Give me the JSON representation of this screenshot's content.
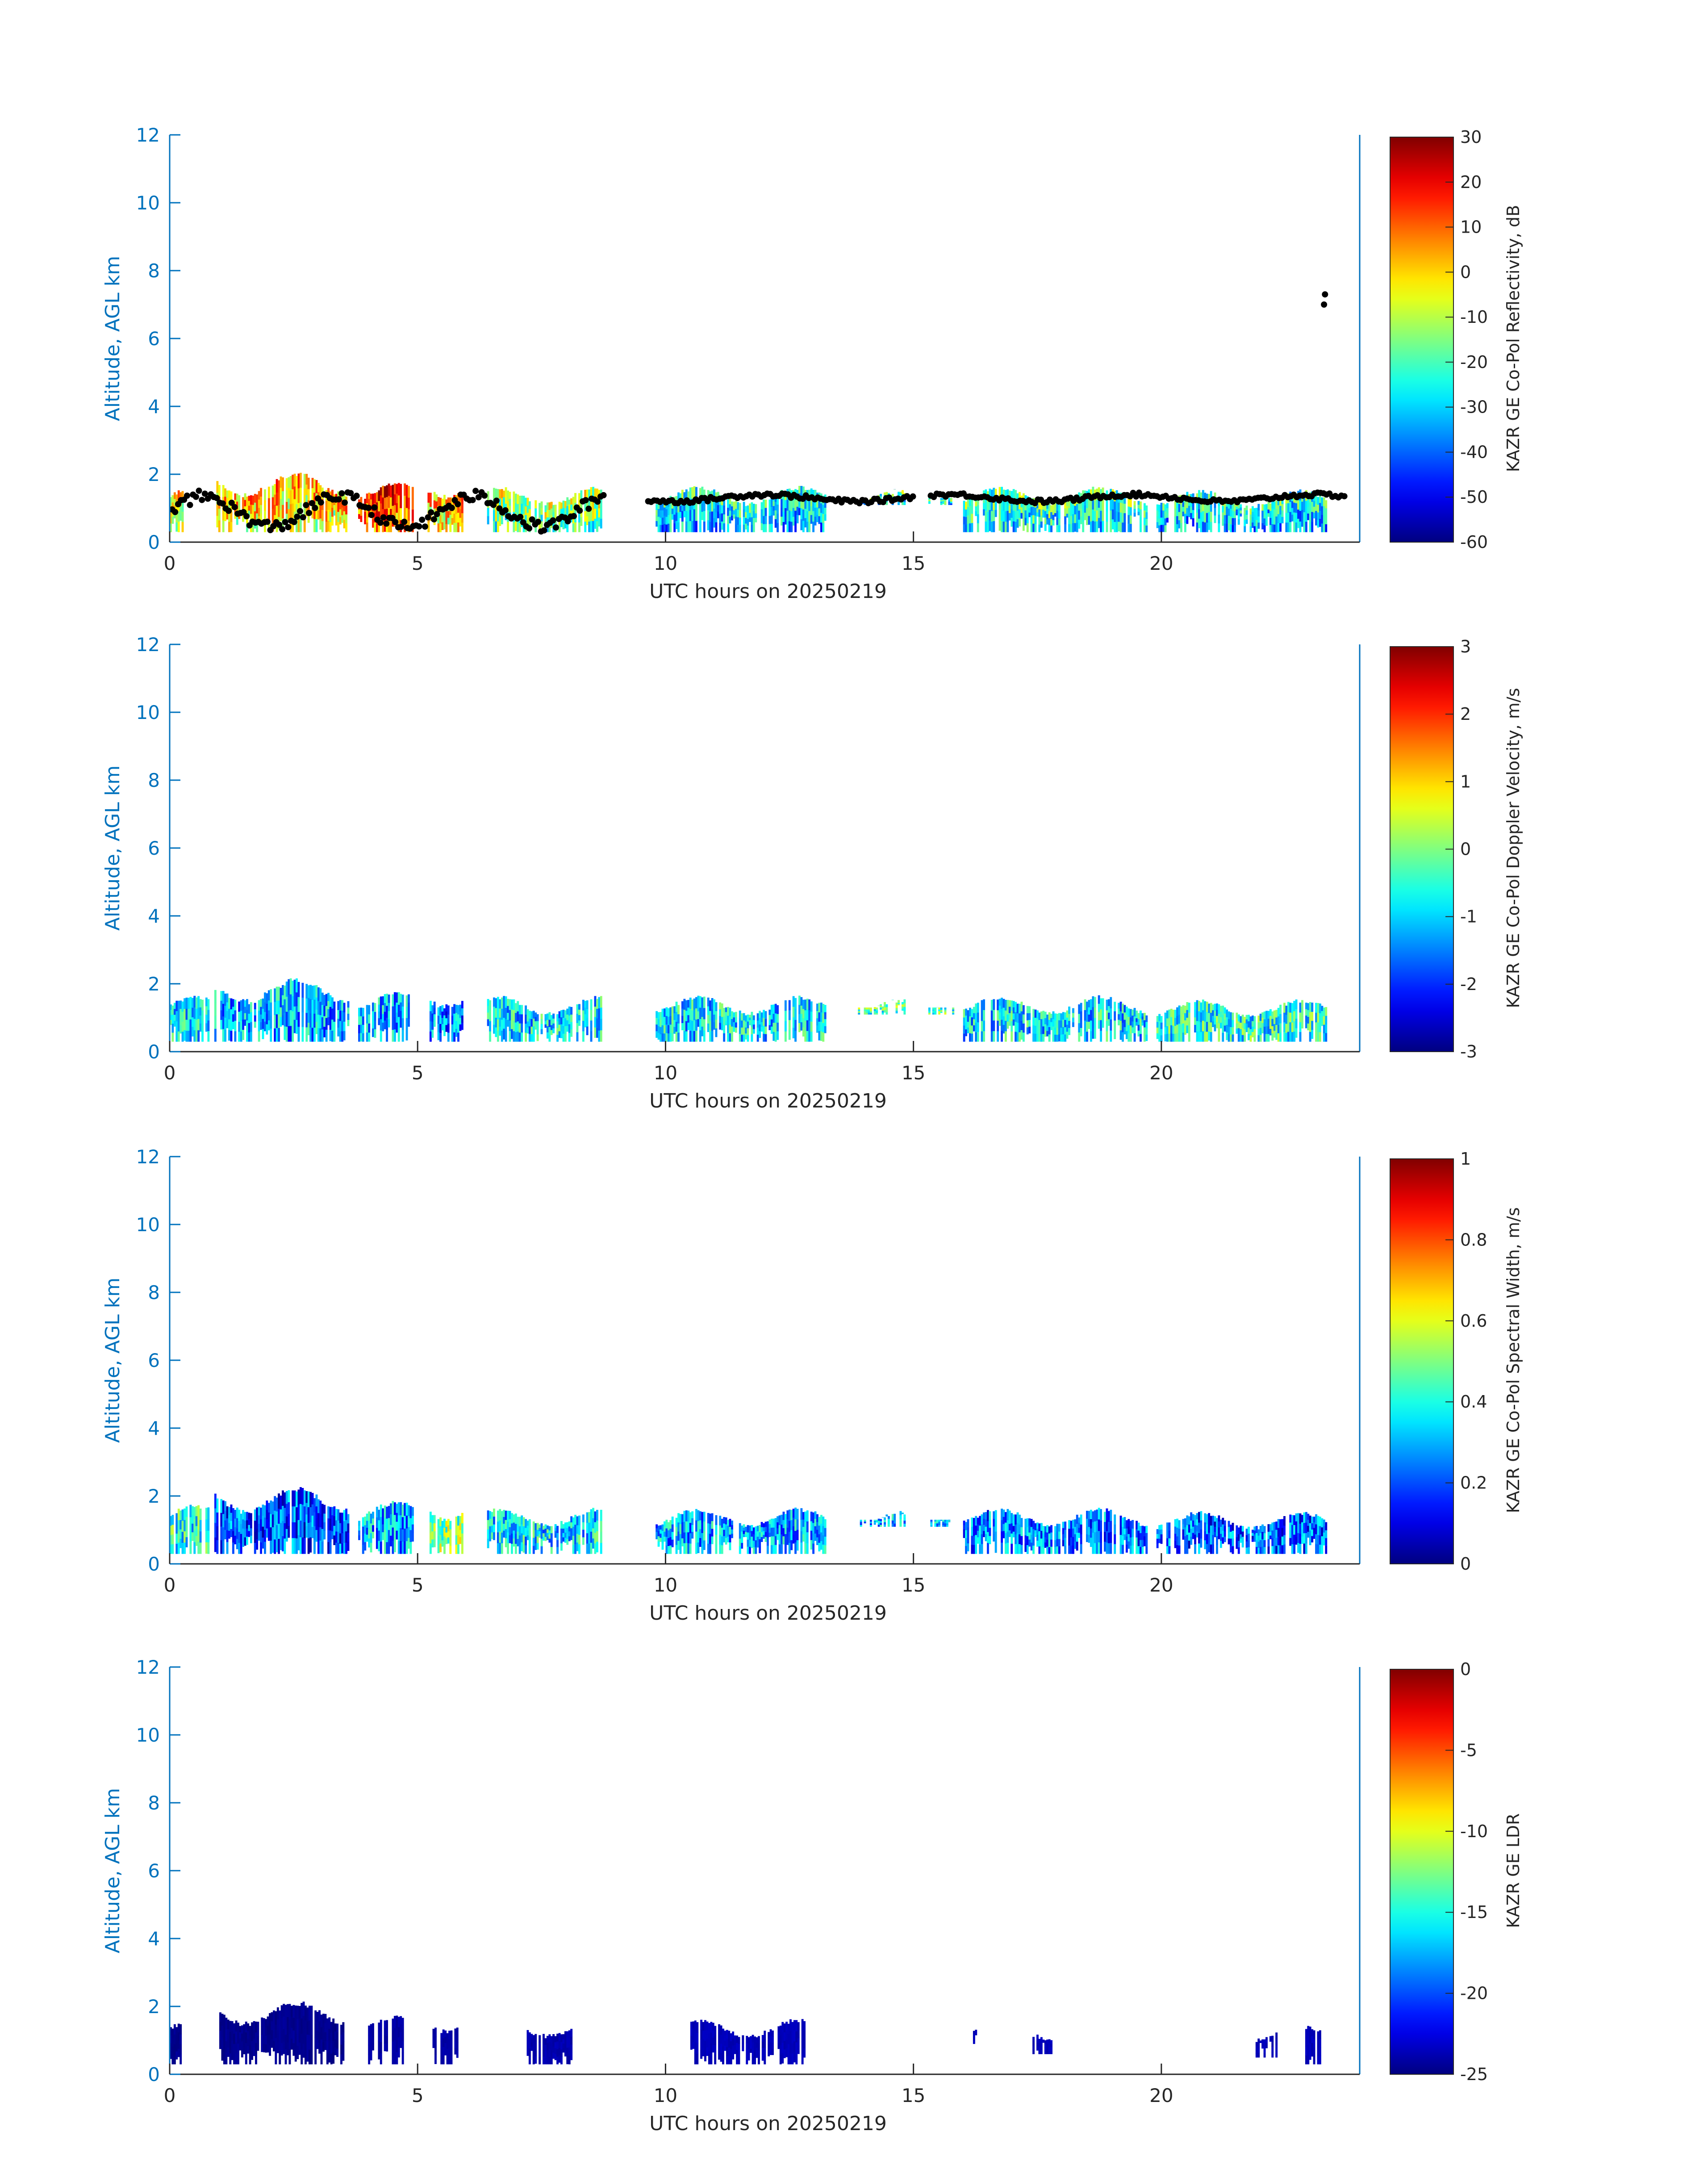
{
  "chart_data": [
    {
      "type": "heatmap",
      "xlabel": "UTC hours on 20250219",
      "ylabel": "Altitude, AGL km",
      "xlim": [
        0,
        24
      ],
      "ylim": [
        0,
        12
      ],
      "xticks": [
        0,
        5,
        10,
        15,
        20
      ],
      "yticks": [
        0,
        2,
        4,
        6,
        8,
        10,
        12
      ],
      "colorbar": {
        "label": "KAZR GE Co-Pol Reflectivity, dB",
        "range": [
          -60,
          30
        ],
        "ticks": [
          -60,
          -50,
          -40,
          -30,
          -20,
          -10,
          0,
          10,
          20,
          30
        ]
      },
      "colormap": "jet",
      "overlay": "black dots (cloud base)",
      "cloud_segments": [
        [
          0,
          0.3,
          0.3,
          1.6,
          0.55
        ],
        [
          0.9,
          3.6,
          0.3,
          2.0,
          0.6
        ],
        [
          3.8,
          4.9,
          0.3,
          1.7,
          0.75
        ],
        [
          5.2,
          5.9,
          0.3,
          1.9,
          0.6
        ],
        [
          6.4,
          8.7,
          0.3,
          1.6,
          0.45
        ],
        [
          9.8,
          13.2,
          0.3,
          1.6,
          0.3
        ],
        [
          13.8,
          14.8,
          1.1,
          1.5,
          0.35
        ],
        [
          15.3,
          15.8,
          1.1,
          1.5,
          0.35
        ],
        [
          16.0,
          19.7,
          0.3,
          1.6,
          0.35
        ],
        [
          19.9,
          23.3,
          0.3,
          1.5,
          0.3
        ]
      ]
    },
    {
      "type": "heatmap",
      "xlabel": "UTC hours on 20250219",
      "ylabel": "Altitude, AGL km",
      "xlim": [
        0,
        24
      ],
      "ylim": [
        0,
        12
      ],
      "xticks": [
        0,
        5,
        10,
        15,
        20
      ],
      "yticks": [
        0,
        2,
        4,
        6,
        8,
        10,
        12
      ],
      "colorbar": {
        "label": "KAZR GE Co-Pol Doppler Velocity, m/s",
        "range": [
          -3,
          3
        ],
        "ticks": [
          -3,
          -2,
          -1,
          0,
          1,
          2,
          3
        ]
      },
      "colormap": "jet",
      "cloud_segments": [
        [
          0,
          0.8,
          0.3,
          1.6,
          0.35
        ],
        [
          0.9,
          3.6,
          0.3,
          2.1,
          0.3
        ],
        [
          3.8,
          4.9,
          0.3,
          1.7,
          0.3
        ],
        [
          5.2,
          5.9,
          0.3,
          1.9,
          0.25
        ],
        [
          6.4,
          8.7,
          0.3,
          1.6,
          0.35
        ],
        [
          9.8,
          13.2,
          0.3,
          1.6,
          0.35
        ],
        [
          13.8,
          14.8,
          1.1,
          1.5,
          0.45
        ],
        [
          15.3,
          15.8,
          1.1,
          1.5,
          0.45
        ],
        [
          16.0,
          19.7,
          0.3,
          1.6,
          0.35
        ],
        [
          19.9,
          23.3,
          0.3,
          1.5,
          0.4
        ]
      ]
    },
    {
      "type": "heatmap",
      "xlabel": "UTC hours on 20250219",
      "ylabel": "Altitude, AGL km",
      "xlim": [
        0,
        24
      ],
      "ylim": [
        0,
        12
      ],
      "xticks": [
        0,
        5,
        10,
        15,
        20
      ],
      "yticks": [
        0,
        2,
        4,
        6,
        8,
        10,
        12
      ],
      "colorbar": {
        "label": "KAZR GE Co-Pol Spectral Width, m/s",
        "range": [
          0,
          1
        ],
        "ticks": [
          0,
          0.2,
          0.4,
          0.6,
          0.8,
          1
        ]
      },
      "colormap": "jet",
      "cloud_segments": [
        [
          0,
          0.8,
          0.3,
          1.7,
          0.4
        ],
        [
          0.9,
          3.6,
          0.3,
          2.2,
          0.2
        ],
        [
          3.8,
          4.9,
          0.3,
          1.8,
          0.3
        ],
        [
          5.2,
          5.9,
          0.3,
          1.9,
          0.5
        ],
        [
          6.4,
          8.7,
          0.3,
          1.6,
          0.35
        ],
        [
          9.8,
          13.2,
          0.3,
          1.6,
          0.3
        ],
        [
          13.8,
          14.8,
          1.1,
          1.5,
          0.3
        ],
        [
          15.3,
          15.8,
          1.1,
          1.5,
          0.3
        ],
        [
          16.0,
          19.7,
          0.3,
          1.6,
          0.25
        ],
        [
          19.9,
          23.3,
          0.3,
          1.5,
          0.22
        ]
      ]
    },
    {
      "type": "heatmap",
      "xlabel": "UTC hours on 20250219",
      "ylabel": "Altitude, AGL km",
      "xlim": [
        0,
        24
      ],
      "ylim": [
        0,
        12
      ],
      "xticks": [
        0,
        5,
        10,
        15,
        20
      ],
      "yticks": [
        0,
        2,
        4,
        6,
        8,
        10,
        12
      ],
      "colorbar": {
        "label": "KAZR GE LDR",
        "range": [
          -25,
          0
        ],
        "ticks": [
          -25,
          -20,
          -15,
          -10,
          -5,
          0
        ]
      },
      "colormap": "jet",
      "cloud_segments": [
        [
          0,
          0.25,
          0.3,
          1.6,
          0.0
        ],
        [
          1.0,
          3.5,
          0.3,
          2.1,
          0.0
        ],
        [
          4.0,
          4.7,
          0.3,
          1.7,
          0.02
        ],
        [
          5.3,
          5.8,
          0.3,
          1.8,
          0.02
        ],
        [
          7.2,
          8.1,
          0.3,
          1.6,
          0.03
        ],
        [
          10.5,
          12.8,
          0.3,
          1.6,
          0.04
        ],
        [
          16.2,
          16.3,
          0.9,
          1.5,
          0.04
        ],
        [
          17.4,
          17.8,
          0.6,
          1.5,
          0.04
        ],
        [
          21.9,
          22.3,
          0.5,
          1.4,
          0.04
        ],
        [
          22.9,
          23.2,
          0.3,
          1.4,
          0.04
        ]
      ]
    }
  ]
}
